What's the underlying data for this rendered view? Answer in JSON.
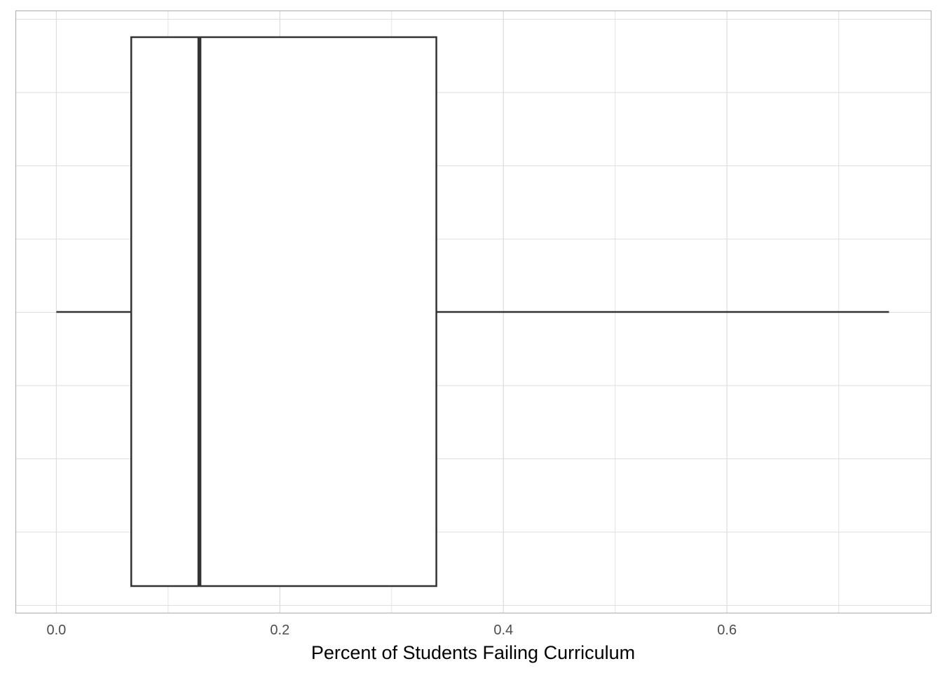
{
  "chart_data": {
    "type": "boxplot",
    "title": "",
    "xlabel": "Percent of Students Failing Curriculum",
    "ylabel": "",
    "orientation": "horizontal",
    "xlim": [
      -0.036,
      0.783
    ],
    "x_ticks": [
      0.0,
      0.2,
      0.4,
      0.6
    ],
    "x_tick_labels": [
      "0.0",
      "0.2",
      "0.4",
      "0.6"
    ],
    "x_minor_ticks": [
      0.1,
      0.3,
      0.5,
      0.7
    ],
    "grid": true,
    "legend": "none",
    "box": {
      "min": 0.0,
      "q1": 0.067,
      "median": 0.128,
      "q3": 0.34,
      "max": 0.745
    },
    "colors": {
      "grid": "#dedede",
      "panel_border": "#b3b3b3",
      "box_stroke": "#333333",
      "box_fill": "#ffffff"
    }
  }
}
